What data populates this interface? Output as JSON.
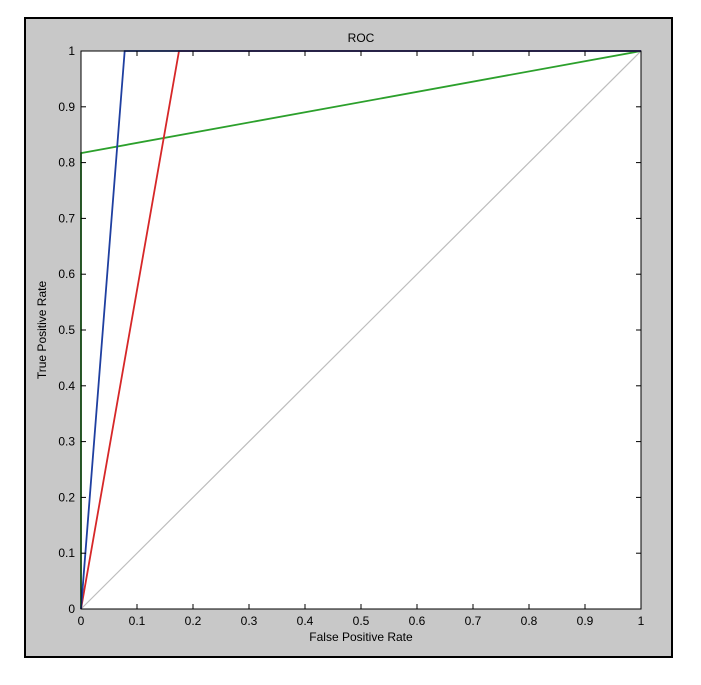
{
  "chart_data": {
    "type": "line",
    "title": "ROC",
    "xlabel": "False Positive Rate",
    "ylabel": "True Positive Rate",
    "xlim": [
      0,
      1
    ],
    "ylim": [
      0,
      1
    ],
    "xticks": [
      "0",
      "0.1",
      "0.2",
      "0.3",
      "0.4",
      "0.5",
      "0.6",
      "0.7",
      "0.8",
      "0.9",
      "1"
    ],
    "yticks": [
      "0",
      "0.1",
      "0.2",
      "0.3",
      "0.4",
      "0.5",
      "0.6",
      "0.7",
      "0.8",
      "0.9",
      "1"
    ],
    "grid": false,
    "legend": false,
    "background_color": "#c8c8c8",
    "plot_color": "#ffffff",
    "series": [
      {
        "color": "#bdbdbd",
        "x": [
          0,
          1
        ],
        "y": [
          0,
          1
        ]
      },
      {
        "color": "#2ca02c",
        "x": [
          0,
          0,
          1
        ],
        "y": [
          0,
          0.817,
          1
        ]
      },
      {
        "color": "#d62728",
        "x": [
          0,
          0.175,
          1
        ],
        "y": [
          0,
          1,
          1
        ]
      },
      {
        "color": "#1f3fa0",
        "x": [
          0,
          0.078,
          1
        ],
        "y": [
          0,
          1,
          1
        ]
      }
    ]
  }
}
